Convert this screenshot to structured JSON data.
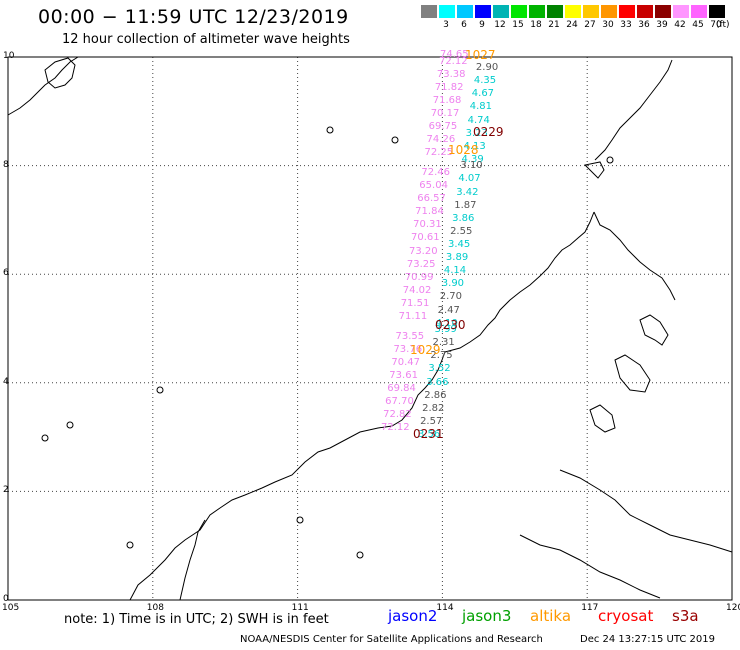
{
  "header": {
    "title": "00:00 − 11:59 UTC 12/23/2019",
    "subtitle": "12 hour collection of altimeter wave heights"
  },
  "scale": {
    "unit": "(ft)",
    "bins": [
      {
        "label": "",
        "color": "#808080"
      },
      {
        "label": "3",
        "color": "#00ffff"
      },
      {
        "label": "6",
        "color": "#00c8ff"
      },
      {
        "label": "9",
        "color": "#0000ff"
      },
      {
        "label": "12",
        "color": "#00b4b4"
      },
      {
        "label": "15",
        "color": "#00e600"
      },
      {
        "label": "18",
        "color": "#00b400"
      },
      {
        "label": "21",
        "color": "#008200"
      },
      {
        "label": "24",
        "color": "#ffff00"
      },
      {
        "label": "27",
        "color": "#ffc800"
      },
      {
        "label": "30",
        "color": "#ff9600"
      },
      {
        "label": "33",
        "color": "#ff0000"
      },
      {
        "label": "36",
        "color": "#c80000"
      },
      {
        "label": "39",
        "color": "#8b0000"
      },
      {
        "label": "42",
        "color": "#ff96ff"
      },
      {
        "label": "45",
        "color": "#ff64ff"
      },
      {
        "label": "70",
        "color": "#000000"
      }
    ]
  },
  "axes": {
    "x_ticks": [
      "105",
      "108",
      "111",
      "114",
      "117",
      "120"
    ],
    "y_ticks": [
      "0",
      "2",
      "4",
      "6",
      "8",
      "10"
    ],
    "lon_range": [
      105,
      120
    ],
    "lat_range": [
      0,
      10
    ]
  },
  "passes": [
    {
      "label": "1027",
      "color": "#ff9900"
    },
    {
      "label": "0229",
      "color": "#800000"
    },
    {
      "label": "1028",
      "color": "#ff9900"
    },
    {
      "label": "0230",
      "color": "#800000"
    },
    {
      "label": "1029",
      "color": "#ff9900"
    },
    {
      "label": "0231",
      "color": "#800000"
    }
  ],
  "observations": [
    {
      "v": "74.65",
      "c": "#ee82ee"
    },
    {
      "v": "72.12",
      "c": "#ee82ee"
    },
    {
      "v": "2.90",
      "c": "#555555"
    },
    {
      "v": "73.38",
      "c": "#ee82ee"
    },
    {
      "v": "4.35",
      "c": "#00cccc"
    },
    {
      "v": "71.82",
      "c": "#ee82ee"
    },
    {
      "v": "4.67",
      "c": "#00cccc"
    },
    {
      "v": "71.68",
      "c": "#ee82ee"
    },
    {
      "v": "4.81",
      "c": "#00cccc"
    },
    {
      "v": "70.17",
      "c": "#ee82ee"
    },
    {
      "v": "4.74",
      "c": "#00cccc"
    },
    {
      "v": "69.75",
      "c": "#ee82ee"
    },
    {
      "v": "3.23",
      "c": "#00cccc"
    },
    {
      "v": "74.26",
      "c": "#ee82ee"
    },
    {
      "v": "4.13",
      "c": "#00cccc"
    },
    {
      "v": "72.25",
      "c": "#ee82ee"
    },
    {
      "v": "4.39",
      "c": "#00cccc"
    },
    {
      "v": "3.10",
      "c": "#555555"
    },
    {
      "v": "72.46",
      "c": "#ee82ee"
    },
    {
      "v": "4.07",
      "c": "#00cccc"
    },
    {
      "v": "65.04",
      "c": "#ee82ee"
    },
    {
      "v": "3.42",
      "c": "#00cccc"
    },
    {
      "v": "66.57",
      "c": "#ee82ee"
    },
    {
      "v": "1.87",
      "c": "#555555"
    },
    {
      "v": "71.84",
      "c": "#ee82ee"
    },
    {
      "v": "3.86",
      "c": "#00cccc"
    },
    {
      "v": "70.31",
      "c": "#ee82ee"
    },
    {
      "v": "2.55",
      "c": "#555555"
    },
    {
      "v": "70.61",
      "c": "#ee82ee"
    },
    {
      "v": "3.45",
      "c": "#00cccc"
    },
    {
      "v": "73.20",
      "c": "#ee82ee"
    },
    {
      "v": "3.89",
      "c": "#00cccc"
    },
    {
      "v": "73.25",
      "c": "#ee82ee"
    },
    {
      "v": "4.14",
      "c": "#00cccc"
    },
    {
      "v": "70.99",
      "c": "#ee82ee"
    },
    {
      "v": "3.90",
      "c": "#00cccc"
    },
    {
      "v": "74.02",
      "c": "#ee82ee"
    },
    {
      "v": "2.70",
      "c": "#555555"
    },
    {
      "v": "71.51",
      "c": "#ee82ee"
    },
    {
      "v": "2.47",
      "c": "#555555"
    },
    {
      "v": "71.11",
      "c": "#ee82ee"
    },
    {
      "v": "4.10",
      "c": "#00cccc"
    },
    {
      "v": "3.99",
      "c": "#00cccc"
    },
    {
      "v": "73.55",
      "c": "#ee82ee"
    },
    {
      "v": "2.31",
      "c": "#555555"
    },
    {
      "v": "73.76",
      "c": "#ee82ee"
    },
    {
      "v": "2.75",
      "c": "#555555"
    },
    {
      "v": "70.47",
      "c": "#ee82ee"
    },
    {
      "v": "3.52",
      "c": "#00cccc"
    },
    {
      "v": "73.61",
      "c": "#ee82ee"
    },
    {
      "v": "3.66",
      "c": "#00cccc"
    },
    {
      "v": "69.84",
      "c": "#ee82ee"
    },
    {
      "v": "2.86",
      "c": "#555555"
    },
    {
      "v": "67.70",
      "c": "#ee82ee"
    },
    {
      "v": "2.82",
      "c": "#555555"
    },
    {
      "v": "72.82",
      "c": "#ee82ee"
    },
    {
      "v": "2.57",
      "c": "#555555"
    },
    {
      "v": "72.12",
      "c": "#ee82ee"
    },
    {
      "v": "3.56",
      "c": "#00cccc"
    }
  ],
  "footer": {
    "note": "note:  1) Time is in UTC;  2) SWH is in feet",
    "satellites": [
      {
        "name": "jason2",
        "color": "#0000ff"
      },
      {
        "name": "jason3",
        "color": "#00a000"
      },
      {
        "name": "altika",
        "color": "#ff9900"
      },
      {
        "name": "cryosat",
        "color": "#ff0000"
      },
      {
        "name": "s3a",
        "color": "#990000"
      }
    ],
    "credit": "NOAA/NESDIS Center for Satellite Applications and Research",
    "timestamp": "Dec 24 13:27:15 UTC 2019"
  }
}
